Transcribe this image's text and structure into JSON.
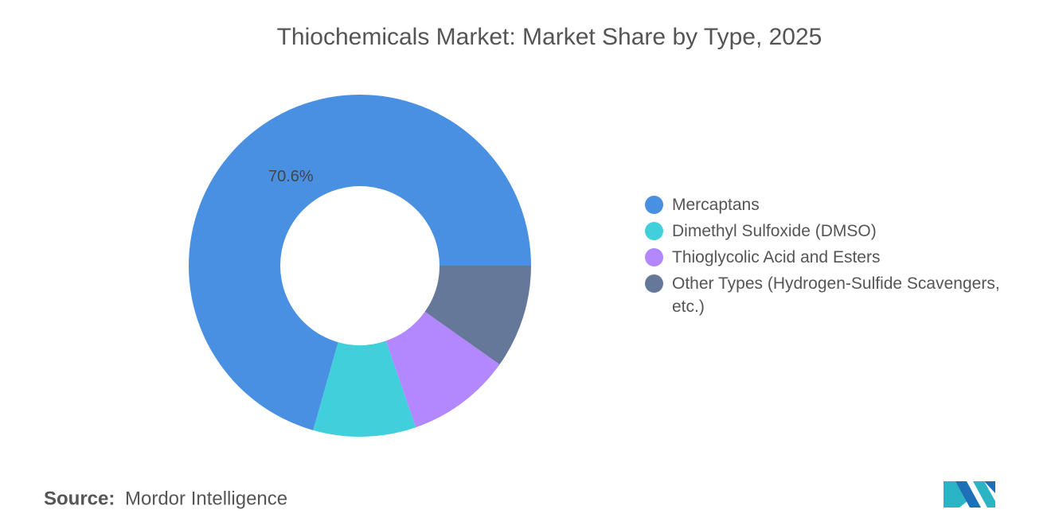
{
  "chart_data": {
    "type": "pie",
    "title": "Thiochemicals Market: Market Share by Type, 2025",
    "categories": [
      "Mercaptans",
      "Dimethyl Sulfoxide (DMSO)",
      "Thioglycolic Acid and Esters",
      "Other Types (Hydrogen-Sulfide Scavengers, etc.)"
    ],
    "values": [
      70.6,
      9.7,
      9.9,
      9.8
    ],
    "value_labels": [
      "70.6%",
      null,
      null,
      null
    ],
    "colors": [
      "#4a90e2",
      "#40cfdb",
      "#b388ff",
      "#65789a"
    ],
    "source_label": "Source:",
    "source": "Mordor Intelligence"
  }
}
